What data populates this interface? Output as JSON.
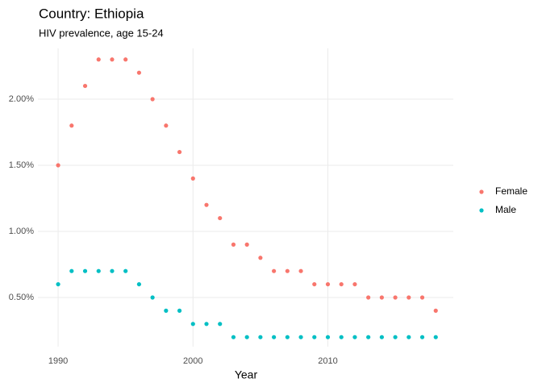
{
  "chart_data": {
    "type": "scatter",
    "title": "Country: Ethiopia",
    "subtitle": "HIV prevalence, age 15-24",
    "x_label": "Year",
    "x": [
      1990,
      1991,
      1992,
      1993,
      1994,
      1995,
      1996,
      1997,
      1998,
      1999,
      2000,
      2001,
      2002,
      2003,
      2004,
      2005,
      2006,
      2007,
      2008,
      2009,
      2010,
      2011,
      2012,
      2013,
      2014,
      2015,
      2016,
      2017,
      2018
    ],
    "series": [
      {
        "name": "Female",
        "color": "#F8766D",
        "values": [
          1.5,
          1.8,
          2.1,
          2.3,
          2.3,
          2.3,
          2.2,
          2.0,
          1.8,
          1.6,
          1.4,
          1.2,
          1.1,
          0.9,
          0.9,
          0.8,
          0.7,
          0.7,
          0.7,
          0.6,
          0.6,
          0.6,
          0.6,
          0.5,
          0.5,
          0.5,
          0.5,
          0.5,
          0.4
        ]
      },
      {
        "name": "Male",
        "color": "#00BFC4",
        "values": [
          0.6,
          0.7,
          0.7,
          0.7,
          0.7,
          0.7,
          0.6,
          0.5,
          0.4,
          0.4,
          0.3,
          0.3,
          0.3,
          0.2,
          0.2,
          0.2,
          0.2,
          0.2,
          0.2,
          0.2,
          0.2,
          0.2,
          0.2,
          0.2,
          0.2,
          0.2,
          0.2,
          0.2,
          0.2
        ]
      }
    ],
    "xlim": [
      1988.5,
      2019.3
    ],
    "xticks": [
      1990,
      2000,
      2010
    ],
    "ylim": [
      0.128,
      2.384
    ],
    "yticks": [
      {
        "value": 0.5,
        "label": "0.50%"
      },
      {
        "value": 1.0,
        "label": "1.00%"
      },
      {
        "value": 1.5,
        "label": "1.50%"
      },
      {
        "value": 2.0,
        "label": "2.00%"
      }
    ],
    "grid": true,
    "legend": "right"
  }
}
